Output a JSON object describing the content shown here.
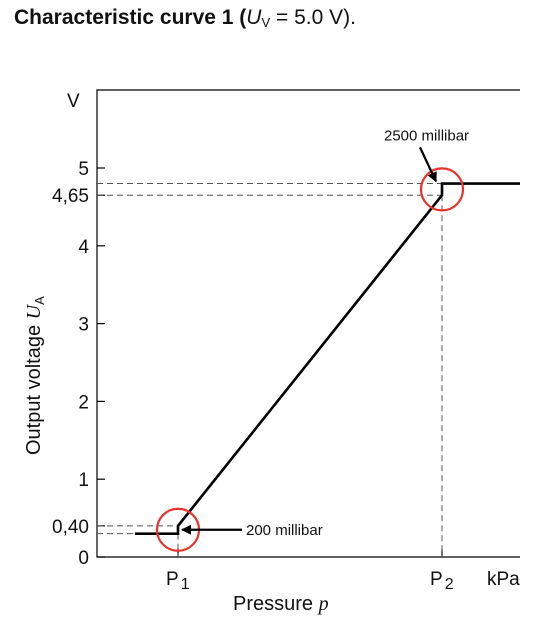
{
  "title": {
    "prefix": "Characteristic curve 1 (",
    "var": "U",
    "var_sub": "V",
    "equals": " = 5.0 V)."
  },
  "chart_data": {
    "type": "line",
    "title": "Characteristic curve 1 (UV = 5.0 V).",
    "xlabel": "Pressure",
    "xlabel_var": "p",
    "x_unit": "kPa",
    "ylabel": "Output voltage",
    "ylabel_var": "U",
    "ylabel_sub": "A",
    "y_unit": "V",
    "ylim": [
      0,
      5
    ],
    "y_ticks": [
      {
        "value": 0,
        "label": "0"
      },
      {
        "value": 0.4,
        "label": "0,40"
      },
      {
        "value": 1,
        "label": "1"
      },
      {
        "value": 2,
        "label": "2"
      },
      {
        "value": 3,
        "label": "3"
      },
      {
        "value": 4,
        "label": "4"
      },
      {
        "value": 4.65,
        "label": "4,65"
      },
      {
        "value": 5,
        "label": "5"
      }
    ],
    "x_ticks": [
      {
        "key": "p1",
        "label": "P",
        "sub": "1"
      },
      {
        "key": "p2",
        "label": "P",
        "sub": "2"
      }
    ],
    "series": [
      {
        "points": [
          {
            "x": "left",
            "y": 0.3
          },
          {
            "x": "p1",
            "y": 0.3
          },
          {
            "x": "p1",
            "y": 0.4
          },
          {
            "x": "p2",
            "y": 4.65
          },
          {
            "x": "p2",
            "y": 4.8
          },
          {
            "x": "right",
            "y": 4.8
          }
        ]
      }
    ],
    "reference_lines": [
      {
        "y": 0.4,
        "to": "p1"
      },
      {
        "y": 0.3,
        "to": "p1"
      },
      {
        "y": 4.65,
        "to": "p2"
      },
      {
        "y": 4.8,
        "to": "p2"
      }
    ],
    "annotations": [
      {
        "at": "p1",
        "text": "200 millibar",
        "direction": "right"
      },
      {
        "at": "p2",
        "text": "2500 millibar",
        "direction": "above"
      }
    ],
    "circle_color": "#e8322d",
    "line_color": "#000000"
  }
}
